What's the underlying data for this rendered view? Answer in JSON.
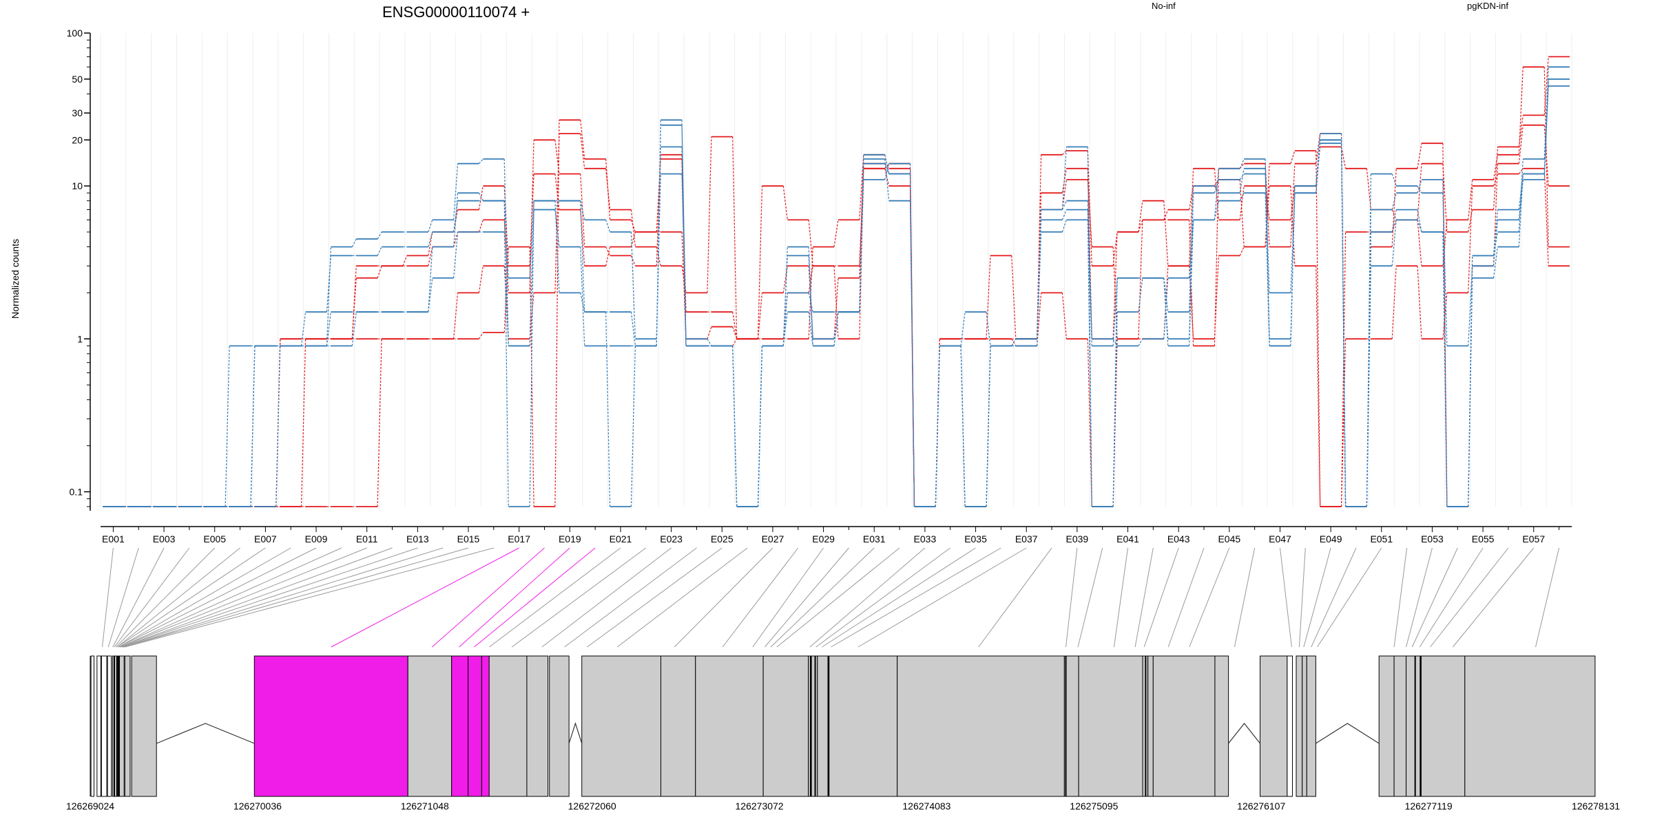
{
  "chart_data": {
    "type": "line",
    "title": "ENSG00000110074 +",
    "ylabel": "Normalized counts",
    "xlabel": "",
    "yscale": "log",
    "ylim": [
      0.08,
      100
    ],
    "yticks": [
      0.1,
      1,
      10,
      20,
      30,
      50,
      100
    ],
    "ytick_labels": [
      "0.1",
      "1",
      "10",
      "20",
      "30",
      "50",
      "100"
    ],
    "legend": [
      {
        "name": "No-inf",
        "color": "#e41a1c",
        "position": "top"
      },
      {
        "name": "pgKDN-inf",
        "color": "#377eb8",
        "position": "top-right"
      }
    ],
    "categories": [
      "E001",
      "E002",
      "E003",
      "E004",
      "E005",
      "E006",
      "E007",
      "E008",
      "E009",
      "E010",
      "E011",
      "E012",
      "E013",
      "E014",
      "E015",
      "E016",
      "E017",
      "E018",
      "E019",
      "E020",
      "E021",
      "E022",
      "E023",
      "E024",
      "E025",
      "E026",
      "E027",
      "E028",
      "E029",
      "E030",
      "E031",
      "E032",
      "E033",
      "E034",
      "E035",
      "E036",
      "E037",
      "E038",
      "E039",
      "E040",
      "E041",
      "E042",
      "E043",
      "E044",
      "E045",
      "E046",
      "E047",
      "E048",
      "E049",
      "E050",
      "E051",
      "E052",
      "E053",
      "E054",
      "E055",
      "E056",
      "E057",
      "E058"
    ],
    "xtick_labels": [
      "E001",
      "E003",
      "E005",
      "E007",
      "E009",
      "E011",
      "E013",
      "E015",
      "E017",
      "E019",
      "E021",
      "E023",
      "E025",
      "E027",
      "E029",
      "E031",
      "E033",
      "E035",
      "E037",
      "E039",
      "E041",
      "E043",
      "E045",
      "E047",
      "E049",
      "E051",
      "E053",
      "E055",
      "E057"
    ],
    "series": [
      {
        "group": "No-inf",
        "color": "#e41a1c",
        "values": [
          0.08,
          0.08,
          0.08,
          0.08,
          0.08,
          0.08,
          0.08,
          0.08,
          0.08,
          0.08,
          0.08,
          1,
          1,
          1,
          1,
          1.1,
          4,
          0.08,
          27,
          15,
          6,
          5,
          5,
          1,
          1.2,
          1,
          1,
          2,
          3,
          3,
          13,
          14,
          0.08,
          1,
          1,
          1,
          0.9,
          2,
          1,
          0.08,
          1,
          1,
          3,
          1,
          3.5,
          4,
          10,
          3,
          0.08,
          1,
          1,
          3,
          1,
          2,
          10,
          12,
          13,
          3
        ]
      },
      {
        "group": "No-inf",
        "color": "#e41a1c",
        "values": [
          0.08,
          0.08,
          0.08,
          0.08,
          0.08,
          0.08,
          0.08,
          1,
          1,
          1,
          1,
          1,
          1,
          1,
          2,
          3,
          1,
          2,
          22,
          13,
          7,
          4,
          3,
          2,
          21,
          1,
          1,
          1,
          4,
          6,
          16,
          12,
          0.08,
          1,
          1,
          1,
          1,
          9,
          13,
          1,
          5,
          6,
          6,
          0.9,
          13,
          14,
          4,
          14,
          22,
          0.08,
          4,
          13,
          19,
          0.08,
          3,
          14,
          25,
          10
        ]
      },
      {
        "group": "No-inf",
        "color": "#e41a1c",
        "values": [
          0.08,
          0.08,
          0.08,
          0.08,
          0.08,
          0.08,
          0.08,
          0.08,
          1,
          1,
          2.5,
          3,
          3,
          4,
          5,
          6,
          2,
          20,
          12,
          4,
          3.5,
          3,
          16,
          1.5,
          1.5,
          1,
          2,
          3,
          1,
          2.5,
          14,
          13,
          0.08,
          1,
          1,
          3.5,
          1,
          7,
          11,
          4,
          1,
          6,
          7,
          10,
          11,
          4,
          14,
          17,
          0.08,
          5,
          5,
          6,
          3,
          6,
          11,
          16,
          60,
          4
        ]
      },
      {
        "group": "No-inf",
        "color": "#e41a1c",
        "values": [
          0.08,
          0.08,
          0.08,
          0.08,
          0.08,
          0.08,
          0.08,
          1,
          1,
          1,
          3,
          3,
          3.5,
          5,
          7,
          10,
          3,
          12,
          7,
          3,
          4,
          5,
          15,
          0.9,
          0.9,
          1,
          10,
          6,
          3,
          1,
          13,
          10,
          0.08,
          0.9,
          0.08,
          0.9,
          1,
          16,
          17,
          3,
          5,
          8,
          3,
          13,
          6,
          10,
          6,
          10,
          18,
          13,
          7,
          6,
          14,
          5,
          7,
          18,
          29,
          70
        ]
      },
      {
        "group": "pgKDN-inf",
        "color": "#377eb8",
        "values": [
          0.08,
          0.08,
          0.08,
          0.08,
          0.08,
          0.9,
          0.9,
          0.9,
          0.9,
          4,
          4.5,
          5,
          5,
          6,
          14,
          15,
          0.9,
          7,
          8,
          6,
          5,
          1,
          12,
          1,
          0.9,
          0.08,
          0.9,
          3.5,
          0.9,
          1.5,
          15,
          8,
          0.08,
          0.9,
          0.08,
          0.9,
          1,
          7,
          8,
          1,
          0.9,
          1,
          2.5,
          6,
          13,
          15,
          1,
          9,
          19,
          0.08,
          12,
          10,
          9,
          0.9,
          3,
          6,
          11,
          50
        ]
      },
      {
        "group": "pgKDN-inf",
        "color": "#377eb8",
        "values": [
          0.08,
          0.08,
          0.08,
          0.08,
          0.08,
          0.08,
          0.9,
          0.9,
          1.5,
          3.5,
          3.5,
          4,
          4,
          5,
          8,
          8,
          2.5,
          8,
          2,
          1.5,
          1.5,
          0.9,
          27,
          0.9,
          0.9,
          0.08,
          0.9,
          4,
          1,
          1.5,
          16,
          12,
          0.08,
          0.9,
          0.08,
          0.9,
          1,
          6,
          7,
          0.9,
          2.5,
          2.5,
          1,
          9,
          11,
          12,
          2,
          9,
          20,
          0.08,
          3,
          6,
          5,
          0.08,
          3.5,
          7,
          12,
          45
        ]
      },
      {
        "group": "pgKDN-inf",
        "color": "#377eb8",
        "values": [
          0.08,
          0.08,
          0.08,
          0.08,
          0.08,
          0.08,
          0.9,
          0.9,
          0.9,
          1.5,
          1.5,
          1.5,
          1.5,
          4,
          9,
          8,
          0.08,
          8,
          8,
          1.5,
          0.08,
          0.9,
          25,
          0.9,
          0.9,
          0.08,
          0.9,
          2,
          1.5,
          1.5,
          11,
          14,
          0.08,
          0.9,
          1.5,
          0.9,
          0.9,
          7,
          18,
          0.08,
          2.5,
          2.5,
          1.5,
          10,
          9,
          13,
          0.9,
          10,
          22,
          0.08,
          7,
          9,
          11,
          0.08,
          3.5,
          5,
          15,
          60
        ]
      },
      {
        "group": "pgKDN-inf",
        "color": "#377eb8",
        "values": [
          0.08,
          0.08,
          0.08,
          0.08,
          0.08,
          0.08,
          0.08,
          0.9,
          0.9,
          0.9,
          1.5,
          1.5,
          1.5,
          2.5,
          5,
          5,
          0.9,
          7,
          4,
          0.9,
          0.9,
          0.9,
          18,
          0.9,
          0.9,
          0.08,
          0.9,
          1.5,
          0.9,
          1.5,
          14,
          12,
          0.08,
          0.9,
          0.08,
          0.9,
          0.9,
          5,
          6,
          0.08,
          1.5,
          2.5,
          0.9,
          6,
          8,
          9,
          0.9,
          10,
          20,
          0.08,
          5,
          7,
          5,
          0.08,
          2.5,
          4,
          12,
          50
        ]
      }
    ],
    "genomic_axis": {
      "tick_labels": [
        "126269024",
        "126270036",
        "126271048",
        "126272060",
        "126273072",
        "126274083",
        "126275095",
        "126276107",
        "126277119",
        "126278131"
      ],
      "start": 126269024,
      "end": 126278131,
      "highlight_color": "#f01de8",
      "exon_color": "#cccccc"
    }
  }
}
